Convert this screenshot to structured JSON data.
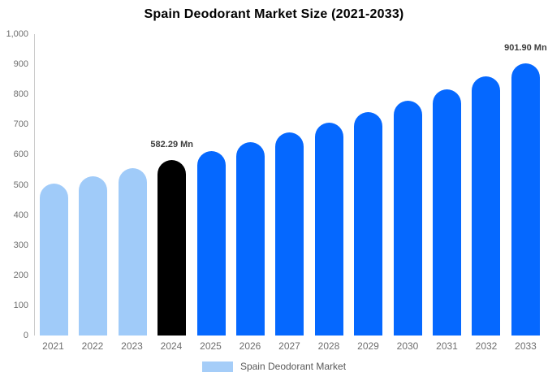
{
  "chart_data": {
    "type": "bar",
    "title": "Spain Deodorant Market Size (2021-2033)",
    "unit": "Mn",
    "categories": [
      "2021",
      "2022",
      "2023",
      "2024",
      "2025",
      "2026",
      "2027",
      "2028",
      "2029",
      "2030",
      "2031",
      "2032",
      "2033"
    ],
    "series": [
      {
        "name": "Spain Deodorant Market",
        "values": [
          503,
          528,
          555,
          582.29,
          611,
          642,
          674,
          707,
          742,
          779,
          818,
          859,
          901.9
        ]
      }
    ],
    "values": [
      503,
      528,
      555,
      582.29,
      611,
      642,
      674,
      707,
      742,
      779,
      818,
      859,
      901.9
    ],
    "bar_colors": [
      "#a0cbf9",
      "#a0cbf9",
      "#a0cbf9",
      "#000000",
      "#0568ff",
      "#0568ff",
      "#0568ff",
      "#0568ff",
      "#0568ff",
      "#0568ff",
      "#0568ff",
      "#0568ff",
      "#0568ff"
    ],
    "point_labels": [
      {
        "category": "2024",
        "text": "582.29 Mn"
      },
      {
        "category": "2033",
        "text": "901.90 Mn"
      }
    ],
    "xlabel": "",
    "ylabel": "",
    "ylim": [
      0,
      1000
    ],
    "ytick_labels": [
      "0",
      "100",
      "200",
      "300",
      "400",
      "500",
      "600",
      "700",
      "800",
      "900",
      "1,000"
    ],
    "grid": false,
    "legend_position": "bottom"
  },
  "legend": {
    "label": "Spain Deodorant Market",
    "swatch_color": "#a5cdf8"
  },
  "colors": {
    "historical_bar": "#a0cbf9",
    "base_year_bar": "#000000",
    "forecast_bar": "#0568ff",
    "axis_line": "#cccccc",
    "tick_text": "#6e6e6e",
    "title_text": "#000000",
    "value_label_text": "#3d3d3d"
  }
}
